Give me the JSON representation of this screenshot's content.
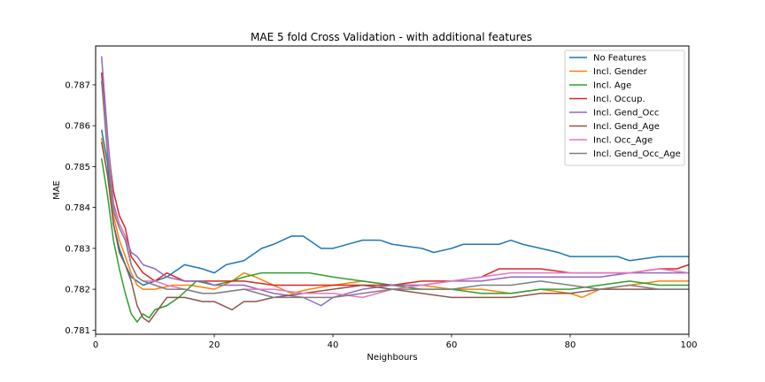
{
  "chart_data": {
    "type": "line",
    "title": "MAE 5 fold Cross Validation - with additional features",
    "xlabel": "Neighbours",
    "ylabel": "MAE",
    "xlim": [
      0,
      100
    ],
    "ylim": [
      0.7809,
      0.78795
    ],
    "xticks": [
      0,
      20,
      40,
      60,
      80,
      100
    ],
    "yticks": [
      0.781,
      0.782,
      0.783,
      0.784,
      0.785,
      0.786,
      0.787
    ],
    "ytick_labels": [
      "0.781",
      "0.782",
      "0.783",
      "0.784",
      "0.785",
      "0.786",
      "0.787"
    ],
    "grid": false,
    "legend_position": "upper right",
    "series": [
      {
        "name": "No Features",
        "color": "#1f77b4",
        "x": [
          1,
          2,
          3,
          4,
          5,
          6,
          7,
          8,
          10,
          12,
          15,
          18,
          20,
          22,
          25,
          28,
          30,
          33,
          35,
          38,
          40,
          45,
          48,
          50,
          55,
          57,
          60,
          62,
          65,
          68,
          70,
          72,
          75,
          78,
          80,
          85,
          88,
          90,
          95,
          98,
          100
        ],
        "y": [
          0.7859,
          0.7851,
          0.7836,
          0.783,
          0.7826,
          0.7823,
          0.7822,
          0.7821,
          0.7822,
          0.7823,
          0.7826,
          0.7825,
          0.7824,
          0.7826,
          0.7827,
          0.783,
          0.7831,
          0.7833,
          0.7833,
          0.783,
          0.783,
          0.7832,
          0.7832,
          0.7831,
          0.783,
          0.7829,
          0.783,
          0.7831,
          0.7831,
          0.7831,
          0.7832,
          0.7831,
          0.783,
          0.7829,
          0.7828,
          0.7828,
          0.7828,
          0.7827,
          0.7828,
          0.7828,
          0.7828
        ]
      },
      {
        "name": "Incl. Gender",
        "color": "#ff7f0e",
        "x": [
          1,
          2,
          3,
          4,
          5,
          6,
          7,
          8,
          10,
          13,
          16,
          20,
          23,
          25,
          27,
          30,
          33,
          36,
          40,
          45,
          50,
          55,
          60,
          65,
          70,
          75,
          80,
          82,
          85,
          90,
          95,
          100
        ],
        "y": [
          0.7857,
          0.7848,
          0.7838,
          0.7832,
          0.7828,
          0.7824,
          0.7821,
          0.782,
          0.782,
          0.7821,
          0.7821,
          0.782,
          0.7822,
          0.7824,
          0.7823,
          0.7821,
          0.7819,
          0.782,
          0.7821,
          0.7822,
          0.7821,
          0.7821,
          0.782,
          0.782,
          0.7819,
          0.782,
          0.7819,
          0.7818,
          0.782,
          0.7821,
          0.7822,
          0.7822
        ]
      },
      {
        "name": "Incl. Age",
        "color": "#2ca02c",
        "x": [
          1,
          2,
          3,
          4,
          5,
          6,
          7,
          8,
          9,
          10,
          12,
          14,
          17,
          20,
          23,
          25,
          28,
          30,
          33,
          36,
          40,
          45,
          50,
          55,
          60,
          65,
          70,
          75,
          80,
          85,
          90,
          95,
          100
        ],
        "y": [
          0.7852,
          0.7843,
          0.7832,
          0.7825,
          0.7819,
          0.7814,
          0.7812,
          0.7814,
          0.7813,
          0.7815,
          0.7816,
          0.7818,
          0.7822,
          0.7821,
          0.7822,
          0.7823,
          0.7824,
          0.7824,
          0.7824,
          0.7824,
          0.7823,
          0.7822,
          0.7821,
          0.782,
          0.782,
          0.7819,
          0.7819,
          0.782,
          0.782,
          0.7821,
          0.7822,
          0.7821,
          0.7821
        ]
      },
      {
        "name": "Incl. Occup.",
        "color": "#d62728",
        "x": [
          1,
          2,
          3,
          4,
          5,
          6,
          7,
          8,
          10,
          12,
          15,
          18,
          20,
          25,
          30,
          35,
          40,
          45,
          50,
          55,
          60,
          65,
          68,
          70,
          75,
          80,
          85,
          90,
          95,
          98,
          100
        ],
        "y": [
          0.7873,
          0.7856,
          0.7844,
          0.7838,
          0.7835,
          0.7828,
          0.7826,
          0.7824,
          0.7822,
          0.7824,
          0.7822,
          0.7822,
          0.7822,
          0.7822,
          0.7821,
          0.7821,
          0.7821,
          0.7821,
          0.7821,
          0.7822,
          0.7822,
          0.7823,
          0.7825,
          0.7825,
          0.7825,
          0.7824,
          0.7824,
          0.7824,
          0.7825,
          0.7825,
          0.7826
        ]
      },
      {
        "name": "Incl. Gend_Occ",
        "color": "#9467bd",
        "x": [
          1,
          2,
          3,
          4,
          5,
          6,
          7,
          8,
          10,
          12,
          15,
          18,
          20,
          25,
          30,
          35,
          38,
          40,
          45,
          50,
          55,
          60,
          65,
          70,
          75,
          80,
          85,
          90,
          95,
          100
        ],
        "y": [
          0.7877,
          0.7858,
          0.7841,
          0.7836,
          0.7833,
          0.7829,
          0.7828,
          0.7826,
          0.7825,
          0.7823,
          0.7822,
          0.7822,
          0.7821,
          0.7821,
          0.7819,
          0.7818,
          0.7816,
          0.7818,
          0.782,
          0.7821,
          0.7821,
          0.7822,
          0.7822,
          0.7823,
          0.7823,
          0.7823,
          0.7823,
          0.7824,
          0.7824,
          0.7824
        ]
      },
      {
        "name": "Incl. Gend_Age",
        "color": "#8c564b",
        "x": [
          1,
          2,
          3,
          4,
          5,
          6,
          7,
          8,
          9,
          10,
          12,
          15,
          18,
          20,
          23,
          25,
          27,
          30,
          35,
          40,
          45,
          50,
          55,
          60,
          65,
          70,
          75,
          80,
          85,
          90,
          95,
          100
        ],
        "y": [
          0.7856,
          0.7848,
          0.7836,
          0.7829,
          0.7826,
          0.7822,
          0.7816,
          0.7813,
          0.7812,
          0.7814,
          0.7818,
          0.7818,
          0.7817,
          0.7817,
          0.7815,
          0.7817,
          0.7817,
          0.7818,
          0.7819,
          0.782,
          0.7821,
          0.782,
          0.7819,
          0.7818,
          0.7818,
          0.7818,
          0.7819,
          0.7819,
          0.782,
          0.782,
          0.782,
          0.782
        ]
      },
      {
        "name": "Incl. Occ_Age",
        "color": "#e377c2",
        "x": [
          1,
          2,
          3,
          4,
          5,
          6,
          7,
          8,
          10,
          12,
          15,
          18,
          20,
          25,
          30,
          35,
          40,
          45,
          50,
          55,
          60,
          65,
          70,
          75,
          80,
          85,
          90,
          95,
          100
        ],
        "y": [
          0.7871,
          0.7855,
          0.784,
          0.7836,
          0.7833,
          0.7826,
          0.7823,
          0.7822,
          0.7822,
          0.7821,
          0.782,
          0.7819,
          0.7819,
          0.782,
          0.782,
          0.7819,
          0.7819,
          0.7818,
          0.782,
          0.7821,
          0.7822,
          0.7823,
          0.7824,
          0.7824,
          0.7824,
          0.7824,
          0.7824,
          0.7825,
          0.7824
        ]
      },
      {
        "name": "Incl. Gend_Occ_Age",
        "color": "#7f7f7f",
        "x": [
          1,
          2,
          3,
          4,
          5,
          6,
          7,
          8,
          10,
          12,
          15,
          18,
          20,
          25,
          30,
          35,
          40,
          45,
          50,
          55,
          60,
          65,
          70,
          75,
          80,
          85,
          90,
          95,
          100
        ],
        "y": [
          0.7871,
          0.7853,
          0.7839,
          0.7835,
          0.7832,
          0.7826,
          0.7823,
          0.7822,
          0.7821,
          0.782,
          0.782,
          0.7819,
          0.7819,
          0.782,
          0.7818,
          0.7818,
          0.7818,
          0.7819,
          0.782,
          0.782,
          0.782,
          0.7821,
          0.7821,
          0.7822,
          0.7821,
          0.782,
          0.7821,
          0.782,
          0.782
        ]
      }
    ]
  }
}
